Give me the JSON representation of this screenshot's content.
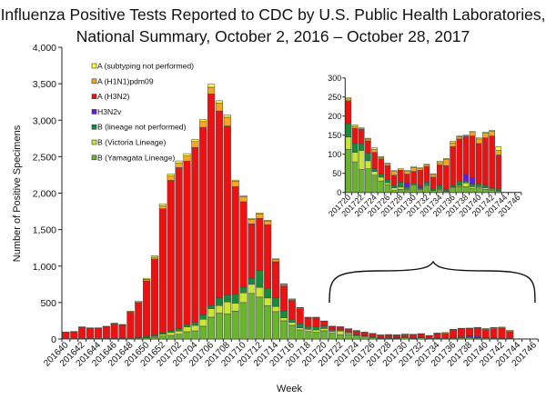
{
  "chart_data": {
    "type": "bar",
    "stacked": true,
    "title": [
      "Influenza Positive Tests Reported to CDC by U.S. Public Health Laboratories,",
      "National Summary, October 2, 2016 – October 28, 2017"
    ],
    "xlabel": "Week",
    "ylabel": "Number of Positive Specimens",
    "ylim": [
      0,
      4000
    ],
    "yticks": [
      0,
      500,
      1000,
      1500,
      2000,
      2500,
      3000,
      3500,
      4000
    ],
    "ytick_labels": [
      "0",
      "500",
      "1,000",
      "1,500",
      "2,000",
      "2,500",
      "3,000",
      "3,500",
      "4,000"
    ],
    "grid": false,
    "legend_placement": "top-left",
    "categories": [
      "201640",
      "201641",
      "201642",
      "201643",
      "201644",
      "201645",
      "201646",
      "201647",
      "201648",
      "201649",
      "201650",
      "201651",
      "201652",
      "201701",
      "201702",
      "201703",
      "201704",
      "201705",
      "201706",
      "201707",
      "201708",
      "201709",
      "201710",
      "201711",
      "201712",
      "201713",
      "201714",
      "201715",
      "201716",
      "201717",
      "201718",
      "201719",
      "201720",
      "201721",
      "201722",
      "201723",
      "201724",
      "201725",
      "201726",
      "201727",
      "201728",
      "201729",
      "201730",
      "201731",
      "201732",
      "201733",
      "201734",
      "201735",
      "201736",
      "201737",
      "201738",
      "201739",
      "201740",
      "201741",
      "201742",
      "201743",
      "201744",
      "201745",
      "201746"
    ],
    "xtick_labels": [
      "201640",
      "201642",
      "201644",
      "201646",
      "201648",
      "201650",
      "201652",
      "201702",
      "201704",
      "201706",
      "201708",
      "201710",
      "201712",
      "201714",
      "201716",
      "201718",
      "201720",
      "201722",
      "201724",
      "201726",
      "201728",
      "201730",
      "201732",
      "201734",
      "201736",
      "201738",
      "201740",
      "201742",
      "201744",
      "201746"
    ],
    "series": [
      {
        "name": "B (Yamagata Lineage)",
        "color": "#6ab42d",
        "values": [
          3,
          3,
          4,
          4,
          4,
          5,
          6,
          6,
          10,
          12,
          15,
          25,
          40,
          50,
          65,
          100,
          112,
          175,
          300,
          354,
          346,
          383,
          500,
          625,
          575,
          458,
          375,
          250,
          188,
          125,
          104,
          92,
          113,
          80,
          60,
          62,
          45,
          30,
          20,
          5,
          8,
          5,
          20,
          8,
          18,
          5,
          5,
          3,
          12,
          15,
          15,
          10,
          12,
          8,
          5,
          3,
          0,
          0,
          0
        ]
      },
      {
        "name": "B (Victoria Lineage)",
        "color": "#c8e632",
        "values": [
          1,
          1,
          1,
          1,
          1,
          1,
          2,
          2,
          3,
          4,
          8,
          12,
          25,
          40,
          45,
          67,
          75,
          96,
          117,
          104,
          162,
          109,
          133,
          125,
          133,
          105,
          71,
          42,
          41,
          29,
          29,
          33,
          32,
          25,
          50,
          21,
          10,
          10,
          5,
          7,
          6,
          3,
          2,
          2,
          2,
          1,
          3,
          1,
          2,
          3,
          10,
          5,
          3,
          4,
          3,
          2,
          0,
          0,
          0
        ]
      },
      {
        "name": "B (lineage not performed)",
        "color": "#1a8a3a",
        "values": [
          2,
          2,
          3,
          3,
          3,
          4,
          4,
          4,
          10,
          10,
          15,
          20,
          20,
          25,
          30,
          33,
          42,
          62,
          41,
          105,
          96,
          121,
          75,
          83,
          230,
          133,
          117,
          91,
          42,
          54,
          42,
          42,
          35,
          23,
          17,
          20,
          7,
          8,
          8,
          6,
          13,
          7,
          3,
          2,
          7,
          4,
          10,
          4,
          4,
          12,
          5,
          7,
          7,
          6,
          4,
          5,
          0,
          0,
          0
        ]
      },
      {
        "name": "H3N2v",
        "color": "#6a1bd8",
        "values": [
          0,
          0,
          0,
          0,
          0,
          0,
          0,
          0,
          0,
          0,
          0,
          0,
          0,
          0,
          0,
          0,
          0,
          0,
          0,
          0,
          0,
          0,
          0,
          0,
          0,
          0,
          0,
          0,
          0,
          0,
          0,
          0,
          0,
          0,
          0,
          0,
          0,
          0,
          0,
          0,
          0,
          10,
          0,
          5,
          0,
          0,
          0,
          0,
          0,
          0,
          17,
          16,
          0,
          0,
          0,
          0,
          0,
          0,
          0
        ]
      },
      {
        "name": "A (H3N2)",
        "color": "#ee1111",
        "values": [
          85,
          92,
          150,
          138,
          138,
          155,
          192,
          176,
          340,
          470,
          760,
          1040,
          1700,
          2060,
          2210,
          2240,
          2398,
          2569,
          2904,
          2564,
          2317,
          1476,
          1174,
          746,
          716,
          872,
          497,
          347,
          259,
          208,
          112,
          120,
          60,
          40,
          38,
          32,
          43,
          40,
          37,
          27,
          31,
          23,
          30,
          41,
          41,
          30,
          54,
          62,
          102,
          110,
          99,
          110,
          106,
          125,
          136,
          88,
          0,
          0,
          0
        ]
      },
      {
        "name": "A (H1N1)pdm09",
        "color": "#f5a623",
        "values": [
          3,
          3,
          5,
          4,
          4,
          5,
          7,
          6,
          10,
          12,
          20,
          25,
          40,
          60,
          65,
          75,
          80,
          80,
          90,
          110,
          120,
          75,
          70,
          60,
          60,
          50,
          30,
          20,
          15,
          12,
          8,
          8,
          5,
          5,
          2,
          5,
          8,
          4,
          5,
          10,
          4,
          7,
          10,
          4,
          4,
          7,
          6,
          17,
          10,
          6,
          3,
          9,
          12,
          12,
          12,
          12,
          0,
          0,
          0
        ]
      },
      {
        "name": "A (subtyping not performed)",
        "color": "#ffff33",
        "values": [
          2,
          3,
          4,
          4,
          4,
          5,
          6,
          6,
          10,
          13,
          15,
          20,
          29,
          27,
          27,
          27,
          30,
          30,
          40,
          30,
          30,
          15,
          15,
          15,
          15,
          10,
          10,
          8,
          5,
          5,
          5,
          5,
          3,
          4,
          2,
          2,
          4,
          2,
          2,
          2,
          0,
          3,
          3,
          3,
          2,
          2,
          4,
          2,
          4,
          2,
          1,
          3,
          3,
          3,
          3,
          10,
          0,
          0,
          0
        ]
      }
    ],
    "legend_order": [
      "A (subtyping not performed)",
      "A (H1N1)pdm09",
      "A (H3N2)",
      "H3N2v",
      "B (lineage not performed)",
      "B (Victoria Lineage)",
      "B (Yamagata Lineage)"
    ],
    "inset": {
      "type": "bar",
      "stacked": true,
      "range": [
        "201720",
        "201746"
      ],
      "ylim": [
        0,
        300
      ],
      "yticks": [
        "0",
        "50",
        "100",
        "150",
        "200",
        "250",
        "300"
      ],
      "xtick_labels": [
        "201720",
        "201722",
        "201724",
        "201726",
        "201728",
        "201730",
        "201732",
        "201734",
        "201736",
        "201738",
        "201740",
        "201742",
        "201744",
        "201746"
      ]
    }
  }
}
